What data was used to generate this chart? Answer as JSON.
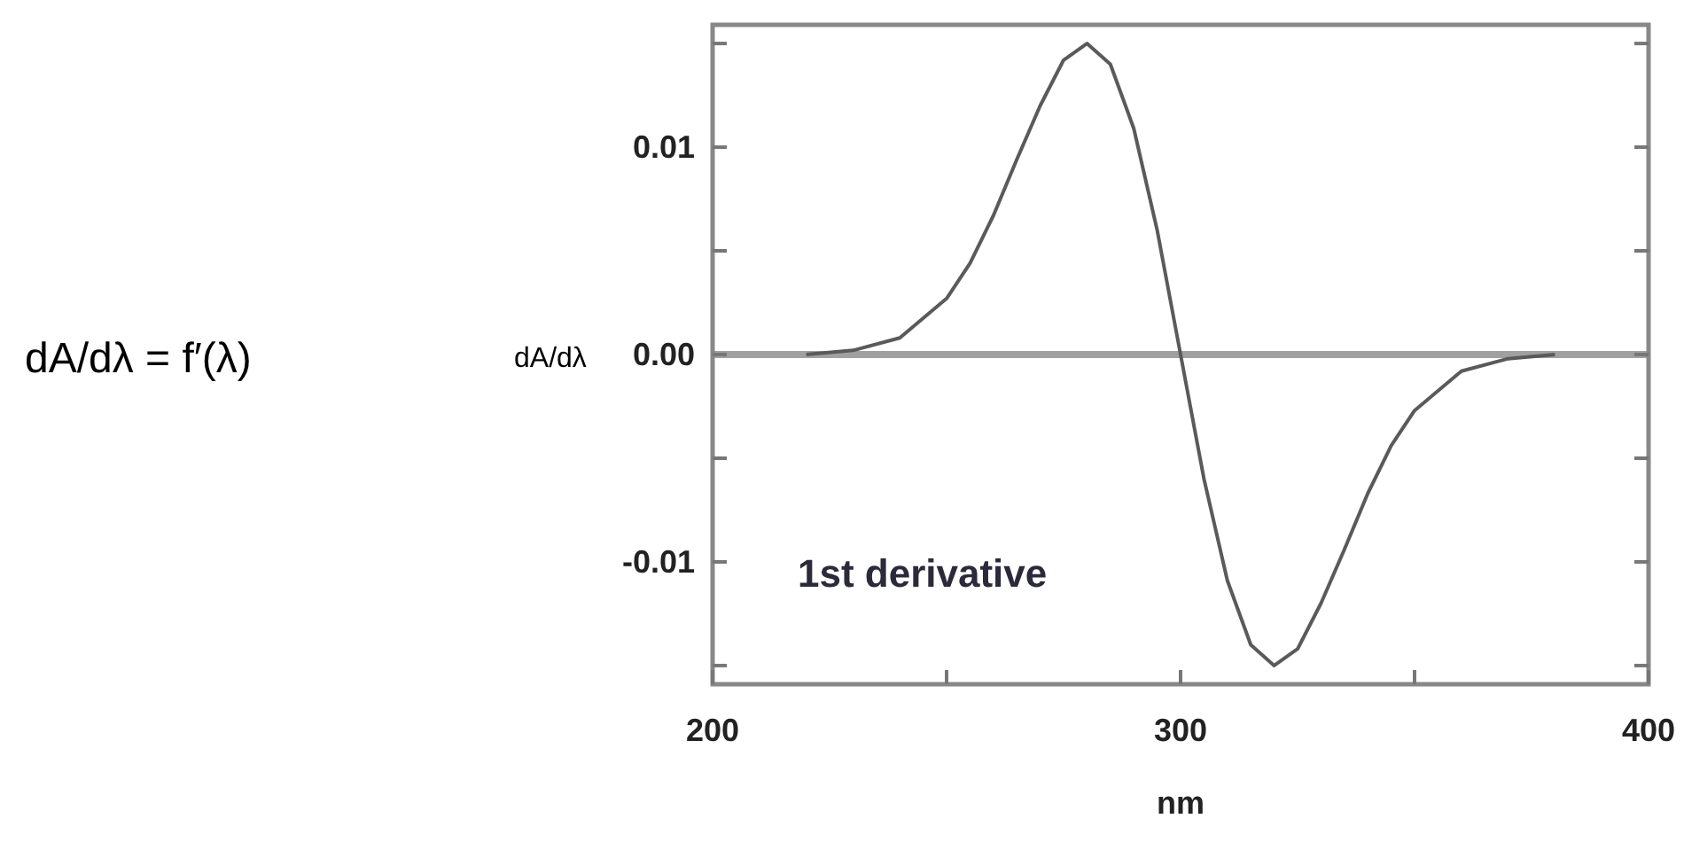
{
  "chart_data": {
    "type": "line",
    "xlabel": "nm",
    "ylabel": "dA/dλ",
    "annotations": [
      "dA/dλ = f′(λ)",
      "1st derivative"
    ],
    "series": [
      {
        "color": "#5a5a5a",
        "x": [
          220,
          230,
          240,
          250,
          255,
          260,
          265,
          270,
          275,
          280,
          285,
          290,
          295,
          300,
          305,
          310,
          315,
          320,
          325,
          330,
          335,
          340,
          345,
          350,
          360,
          370,
          380
        ],
        "values": [
          0.0,
          0.0002,
          0.0008,
          0.0027,
          0.0044,
          0.0067,
          0.0094,
          0.012,
          0.0142,
          0.015,
          0.014,
          0.0109,
          0.006,
          0.0,
          -0.006,
          -0.0109,
          -0.014,
          -0.015,
          -0.0142,
          -0.012,
          -0.0094,
          -0.0067,
          -0.0044,
          -0.0027,
          -0.0008,
          -0.0002,
          0.0
        ]
      }
    ],
    "xlim": [
      200,
      400
    ],
    "ylim": [
      -0.0159,
      0.0159
    ],
    "xticks": [
      200,
      {
        "value": 250,
        "label": null
      },
      300,
      {
        "value": 350,
        "label": null
      },
      400
    ],
    "yticks": [
      {
        "value": -0.015,
        "label": null
      },
      -0.01,
      {
        "value": -0.005,
        "label": null
      },
      {
        "value": 0,
        "label": "0.00"
      },
      {
        "value": 0.005,
        "label": null
      },
      0.01,
      {
        "value": 0.015,
        "label": null
      }
    ],
    "ref_lines": [
      {
        "axis": "y",
        "value": 0,
        "color": "#a0a0a0"
      }
    ],
    "grid": false,
    "marker": "none",
    "line_style": "solid"
  }
}
